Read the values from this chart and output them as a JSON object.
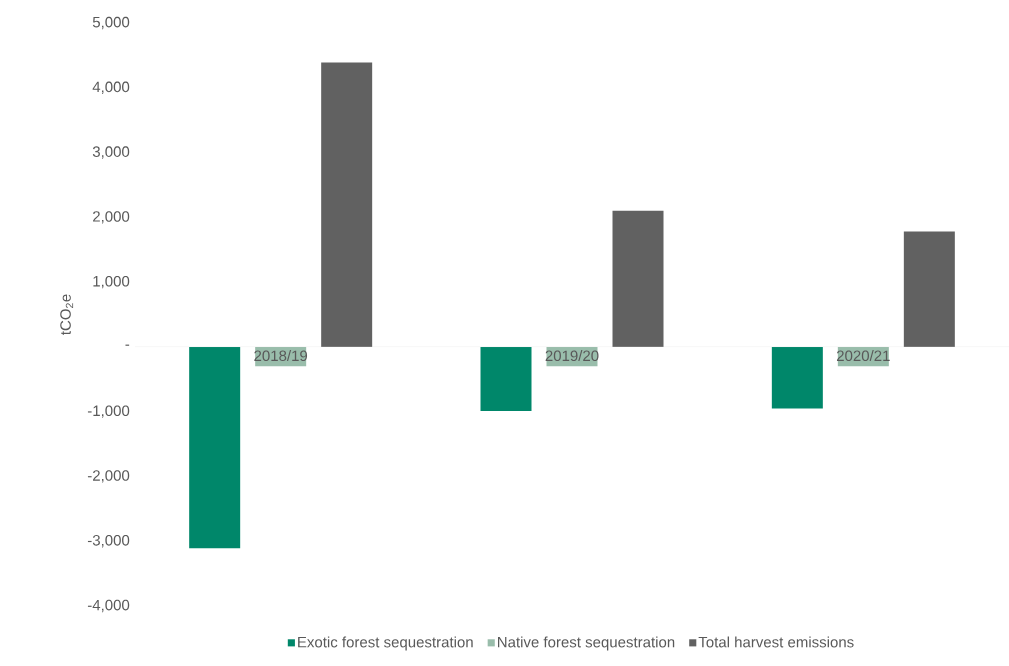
{
  "chart_data": {
    "type": "bar",
    "ylabel": "tCO$_{2}$e",
    "categories": [
      "2018/19",
      "2019/20",
      "2020/21"
    ],
    "series": [
      {
        "name": "Exotic forest sequestration",
        "color": "#00876a",
        "values": [
          -3110,
          -990,
          -950
        ]
      },
      {
        "name": "Native forest sequestration",
        "color": "#99bdab",
        "values": [
          -300,
          -300,
          -300
        ]
      },
      {
        "name": "Total harvest emissions",
        "color": "#616161",
        "values": [
          4390,
          2100,
          1780
        ]
      }
    ],
    "ylim": [
      -4000,
      5000
    ],
    "yticks": [
      {
        "value": -4000,
        "label": "-4,000"
      },
      {
        "value": -3000,
        "label": "-3,000"
      },
      {
        "value": -2000,
        "label": "-2,000"
      },
      {
        "value": -1000,
        "label": "-1,000"
      },
      {
        "value": 0,
        "label": "-"
      },
      {
        "value": 1000,
        "label": "1,000"
      },
      {
        "value": 2000,
        "label": "2,000"
      },
      {
        "value": 3000,
        "label": "3,000"
      },
      {
        "value": 4000,
        "label": "4,000"
      },
      {
        "value": 5000,
        "label": "5,000"
      }
    ],
    "grid": false,
    "legend": "bottom"
  }
}
